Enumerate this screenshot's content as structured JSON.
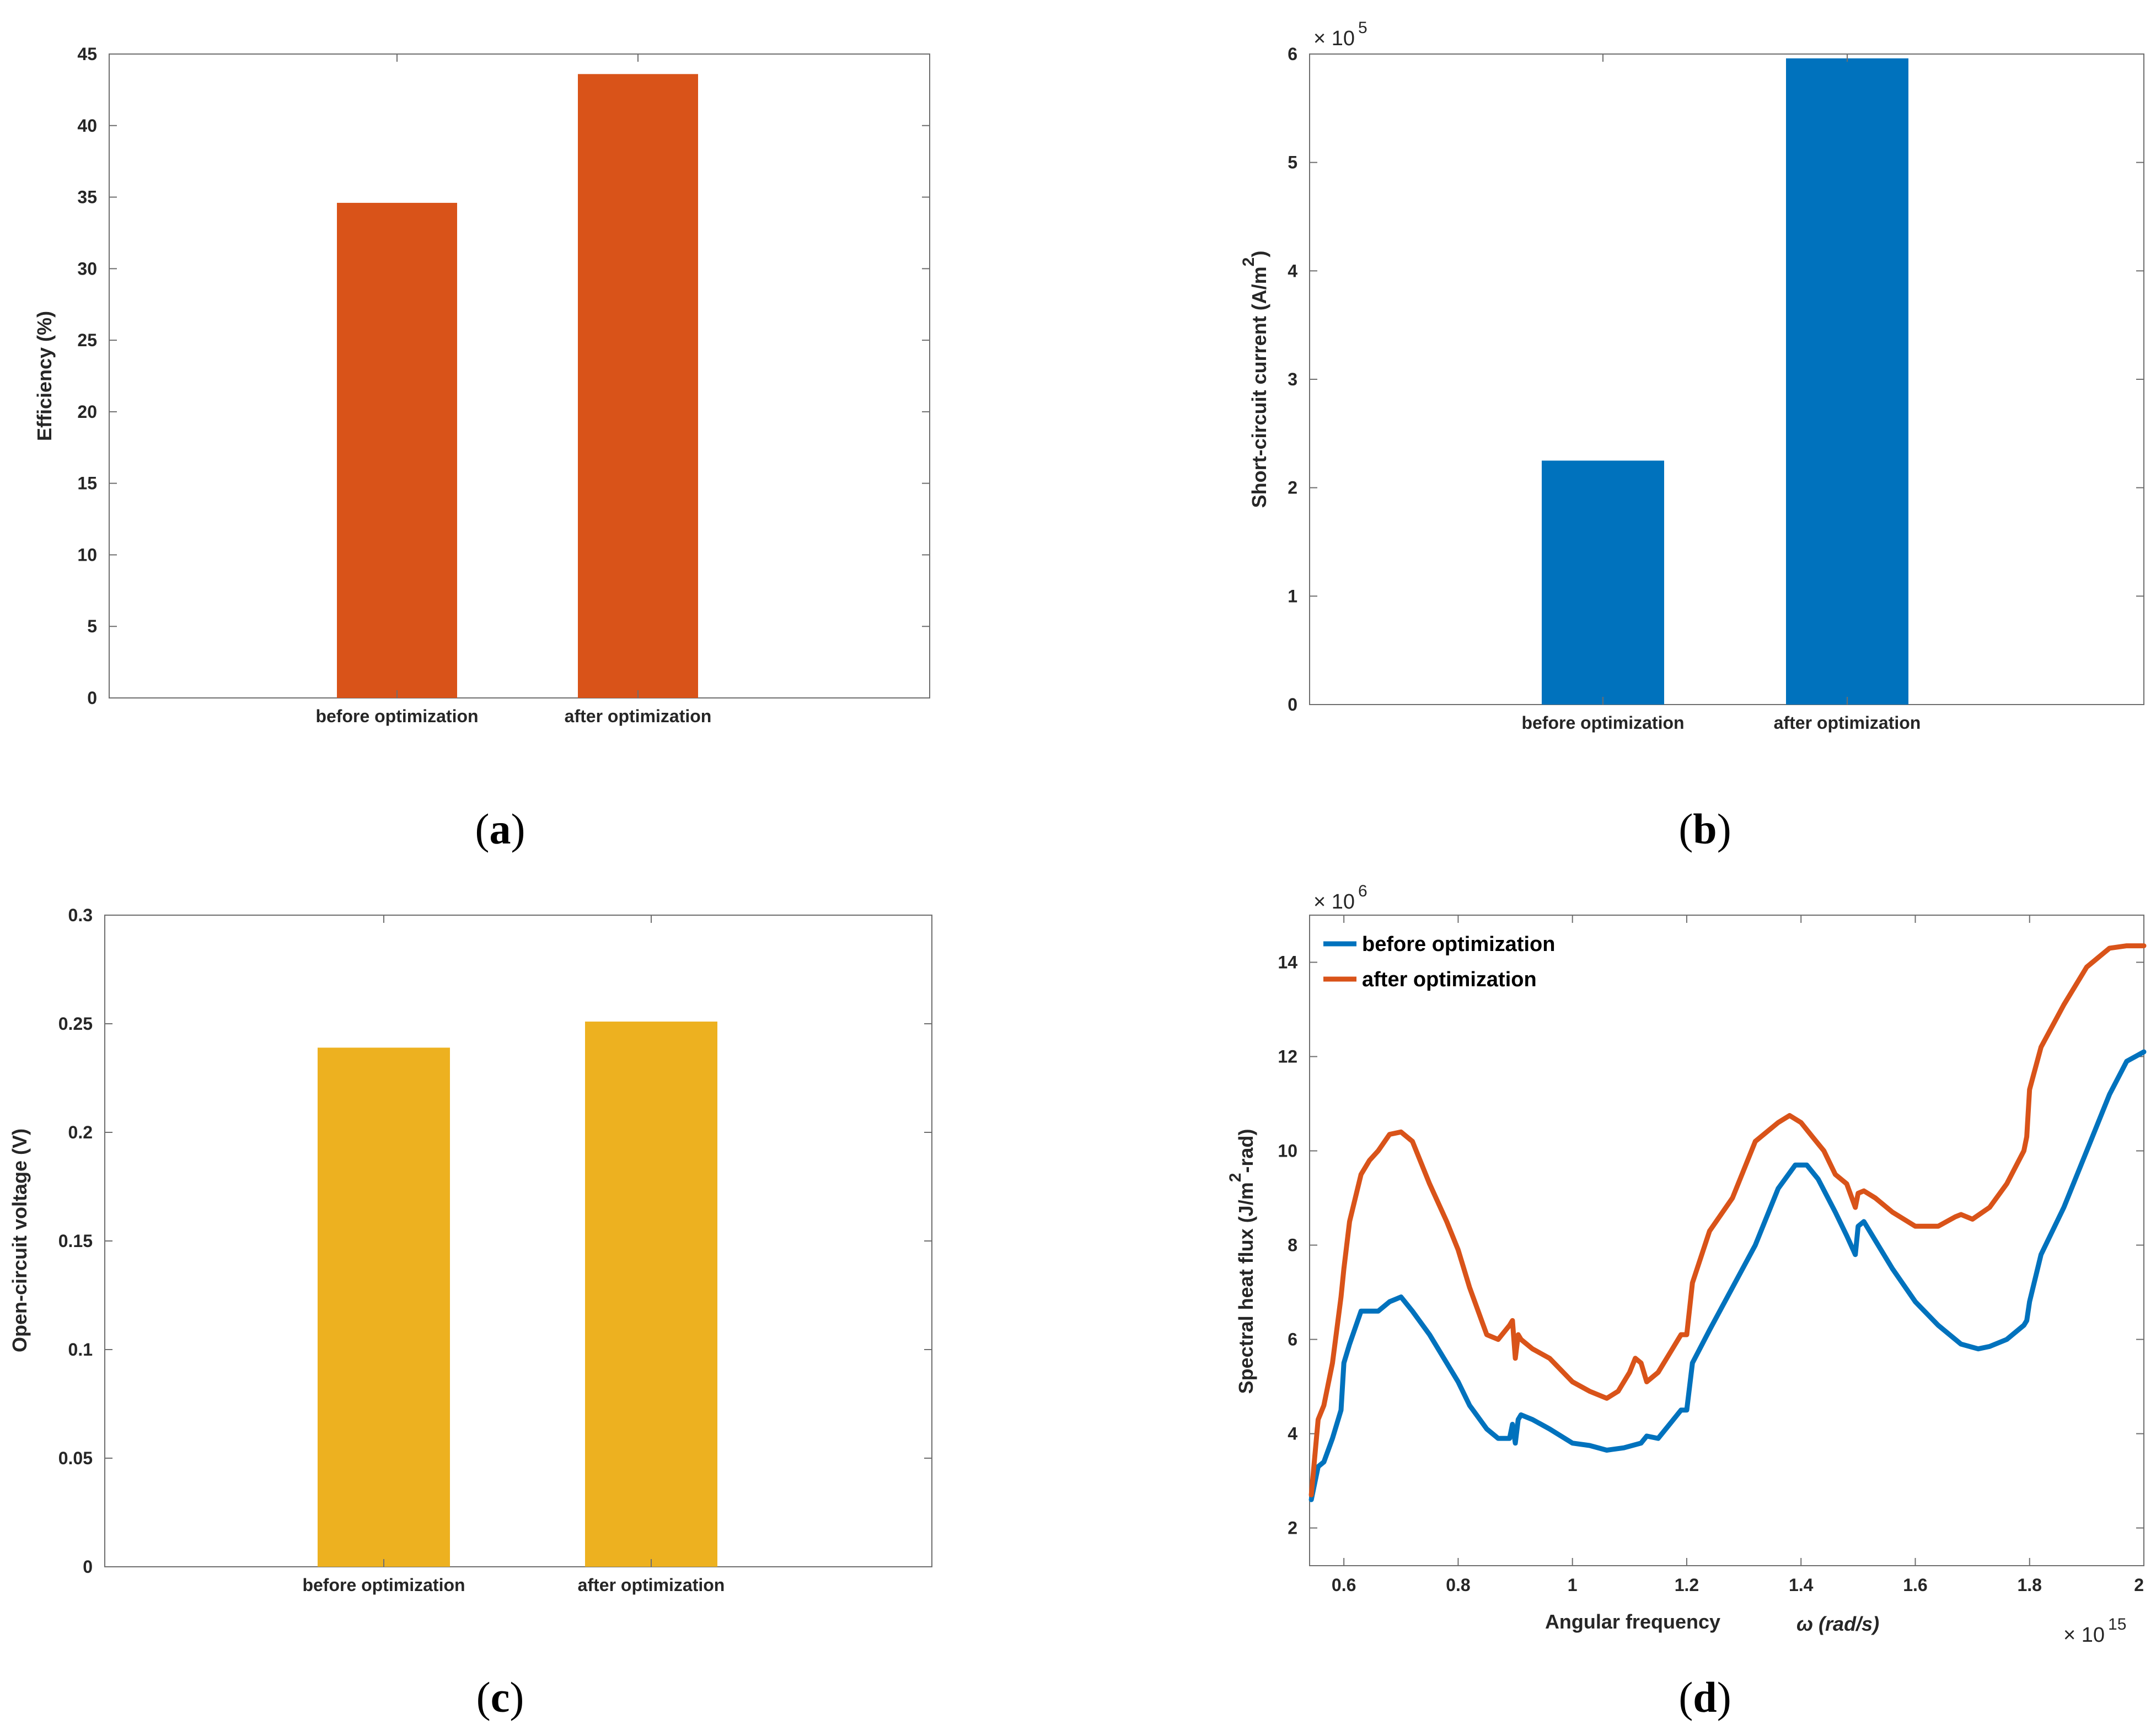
{
  "chart_data": [
    {
      "type": "bar",
      "panel_label": "a",
      "categories": [
        "before optimization",
        "after optimization"
      ],
      "values": [
        34.6,
        43.6
      ],
      "ylabel": "Efficiency (%)",
      "xlabel": "",
      "ylim": [
        0,
        45
      ],
      "yticks": [
        0,
        5,
        10,
        15,
        20,
        25,
        30,
        35,
        40,
        45
      ],
      "ytick_labels": [
        "0",
        "5",
        "10",
        "15",
        "20",
        "25",
        "30",
        "35",
        "40",
        "45"
      ],
      "color": "#D95319",
      "exponent_label": null
    },
    {
      "type": "bar",
      "panel_label": "b",
      "categories": [
        "before optimization",
        "after optimization"
      ],
      "values": [
        225000,
        596000
      ],
      "ylabel": "Short-circuit current (A/m",
      "ylabel_superscript": "2",
      "ylabel_close": ")",
      "xlabel": "",
      "ylim": [
        0,
        600000
      ],
      "yticks": [
        0,
        100000,
        200000,
        300000,
        400000,
        500000,
        600000
      ],
      "ytick_labels": [
        "0",
        "1",
        "2",
        "3",
        "4",
        "5",
        "6"
      ],
      "color": "#0072BD",
      "exponent_label": {
        "base": "× 10",
        "power": "5"
      }
    },
    {
      "type": "bar",
      "panel_label": "c",
      "categories": [
        "before optimization",
        "after optimization"
      ],
      "values": [
        0.239,
        0.251
      ],
      "ylabel": "Open-circuit voltage (V)",
      "xlabel": "",
      "ylim": [
        0,
        0.3
      ],
      "yticks": [
        0,
        0.05,
        0.1,
        0.15,
        0.2,
        0.25,
        0.3
      ],
      "ytick_labels": [
        "0",
        "0.05",
        "0.1",
        "0.15",
        "0.2",
        "0.25",
        "0.3"
      ],
      "color": "#EDB120",
      "exponent_label": null
    },
    {
      "type": "line",
      "panel_label": "d",
      "xlabel": "Angular frequency",
      "xlabel_symbol": "ω (rad/s)",
      "ylabel": "Spectral heat flux (J/m",
      "ylabel_superscript": "2",
      "ylabel_close": "-rad)",
      "xlim": [
        0.54,
        2.0
      ],
      "ylim": [
        1.2,
        15.0
      ],
      "xticks": [
        0.6,
        0.8,
        1.0,
        1.2,
        1.4,
        1.6,
        1.8,
        2.0
      ],
      "xtick_labels": [
        "0.6",
        "0.8",
        "1",
        "1.2",
        "1.4",
        "1.6",
        "1.8",
        "2"
      ],
      "yticks": [
        2,
        4,
        6,
        8,
        10,
        12,
        14
      ],
      "ytick_labels": [
        "2",
        "4",
        "6",
        "8",
        "10",
        "12",
        "14"
      ],
      "x_exponent_label": {
        "base": "× 10",
        "power": "15"
      },
      "y_exponent_label": {
        "base": "× 10",
        "power": "6"
      },
      "legend_position": "top-left",
      "series": [
        {
          "name": "before optimization",
          "color": "#0072BD",
          "x": [
            0.543,
            0.555,
            0.565,
            0.58,
            0.595,
            0.6,
            0.61,
            0.63,
            0.645,
            0.66,
            0.68,
            0.7,
            0.72,
            0.75,
            0.78,
            0.8,
            0.82,
            0.85,
            0.87,
            0.89,
            0.895,
            0.9,
            0.905,
            0.91,
            0.93,
            0.96,
            1.0,
            1.03,
            1.06,
            1.09,
            1.12,
            1.13,
            1.15,
            1.17,
            1.19,
            1.2,
            1.21,
            1.24,
            1.28,
            1.32,
            1.36,
            1.39,
            1.41,
            1.43,
            1.46,
            1.48,
            1.495,
            1.5,
            1.51,
            1.53,
            1.56,
            1.6,
            1.64,
            1.68,
            1.71,
            1.73,
            1.76,
            1.79,
            1.795,
            1.8,
            1.82,
            1.86,
            1.9,
            1.94,
            1.97,
            2.0
          ],
          "y": [
            2.6,
            3.3,
            3.4,
            3.9,
            4.5,
            5.5,
            5.9,
            6.6,
            6.6,
            6.6,
            6.8,
            6.9,
            6.6,
            6.1,
            5.5,
            5.1,
            4.6,
            4.1,
            3.9,
            3.9,
            4.2,
            3.8,
            4.3,
            4.4,
            4.3,
            4.1,
            3.8,
            3.75,
            3.65,
            3.7,
            3.8,
            3.95,
            3.9,
            4.2,
            4.5,
            4.5,
            5.5,
            6.2,
            7.1,
            8.0,
            9.2,
            9.7,
            9.7,
            9.4,
            8.7,
            8.2,
            7.8,
            8.4,
            8.5,
            8.1,
            7.5,
            6.8,
            6.3,
            5.9,
            5.8,
            5.85,
            6.0,
            6.3,
            6.4,
            6.8,
            7.8,
            8.8,
            10.0,
            11.2,
            11.9,
            12.1
          ]
        },
        {
          "name": "after optimization",
          "color": "#D95319",
          "x": [
            0.543,
            0.555,
            0.565,
            0.58,
            0.595,
            0.6,
            0.61,
            0.63,
            0.645,
            0.66,
            0.68,
            0.7,
            0.72,
            0.75,
            0.78,
            0.8,
            0.82,
            0.85,
            0.87,
            0.89,
            0.895,
            0.9,
            0.905,
            0.91,
            0.93,
            0.96,
            1.0,
            1.03,
            1.06,
            1.08,
            1.1,
            1.11,
            1.12,
            1.13,
            1.15,
            1.17,
            1.19,
            1.2,
            1.21,
            1.24,
            1.28,
            1.32,
            1.36,
            1.38,
            1.4,
            1.42,
            1.44,
            1.46,
            1.48,
            1.495,
            1.5,
            1.51,
            1.53,
            1.56,
            1.6,
            1.64,
            1.67,
            1.68,
            1.7,
            1.73,
            1.76,
            1.79,
            1.795,
            1.8,
            1.82,
            1.86,
            1.9,
            1.94,
            1.97,
            2.0
          ],
          "y": [
            2.7,
            4.3,
            4.6,
            5.5,
            6.9,
            7.5,
            8.5,
            9.5,
            9.8,
            10.0,
            10.35,
            10.4,
            10.2,
            9.3,
            8.5,
            7.9,
            7.1,
            6.1,
            6.0,
            6.3,
            6.4,
            5.6,
            6.1,
            6.0,
            5.8,
            5.6,
            5.1,
            4.9,
            4.75,
            4.9,
            5.3,
            5.6,
            5.5,
            5.1,
            5.3,
            5.7,
            6.1,
            6.1,
            7.2,
            8.3,
            9.0,
            10.2,
            10.6,
            10.75,
            10.6,
            10.3,
            10.0,
            9.5,
            9.3,
            8.8,
            9.1,
            9.15,
            9.0,
            8.7,
            8.4,
            8.4,
            8.6,
            8.65,
            8.55,
            8.8,
            9.3,
            10.0,
            10.3,
            11.3,
            12.2,
            13.1,
            13.9,
            14.3,
            14.35,
            14.35
          ]
        }
      ]
    }
  ]
}
